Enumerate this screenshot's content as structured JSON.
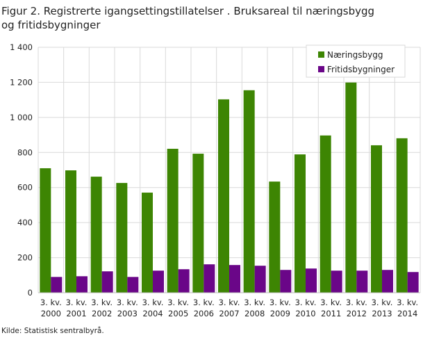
{
  "chart_data": {
    "type": "bar",
    "title": "Figur 2. Registrerte igangsettingstillatelser . Bruksareal til næringsbygg og fritidsbygninger",
    "xlabel": "",
    "ylabel": "",
    "ylim": [
      0,
      1400
    ],
    "yticks": [
      0,
      200,
      400,
      600,
      800,
      1000,
      1200,
      1400
    ],
    "ytick_labels": [
      "0",
      "200",
      "400",
      "600",
      "800",
      "1 000",
      "1 200",
      "1 400"
    ],
    "grid": true,
    "legend_position": "top-right",
    "categories": [
      [
        "3. kv.",
        "2000"
      ],
      [
        "3. kv.",
        "2001"
      ],
      [
        "3. kv.",
        "2002"
      ],
      [
        "3. kv.",
        "2003"
      ],
      [
        "3. kv.",
        "2004"
      ],
      [
        "3. kv.",
        "2005"
      ],
      [
        "3. kv.",
        "2006"
      ],
      [
        "3. kv.",
        "2007"
      ],
      [
        "3. kv.",
        "2008"
      ],
      [
        "3. kv.",
        "2009"
      ],
      [
        "3. kv.",
        "2010"
      ],
      [
        "3. kv.",
        "2011"
      ],
      [
        "3. kv.",
        "2012"
      ],
      [
        "3. kv.",
        "2013"
      ],
      [
        "3. kv.",
        "2014"
      ]
    ],
    "series": [
      {
        "name": "Næringsbygg",
        "color": "#3d8503",
        "values": [
          710,
          698,
          662,
          626,
          571,
          821,
          793,
          1103,
          1155,
          634,
          789,
          897,
          1199,
          841,
          881
        ]
      },
      {
        "name": "Fritidsbygninger",
        "color": "#6a0688",
        "values": [
          90,
          94,
          122,
          90,
          126,
          134,
          162,
          158,
          154,
          130,
          138,
          126,
          126,
          130,
          118
        ]
      }
    ]
  },
  "source": "Kilde: Statistisk sentralbyrå."
}
